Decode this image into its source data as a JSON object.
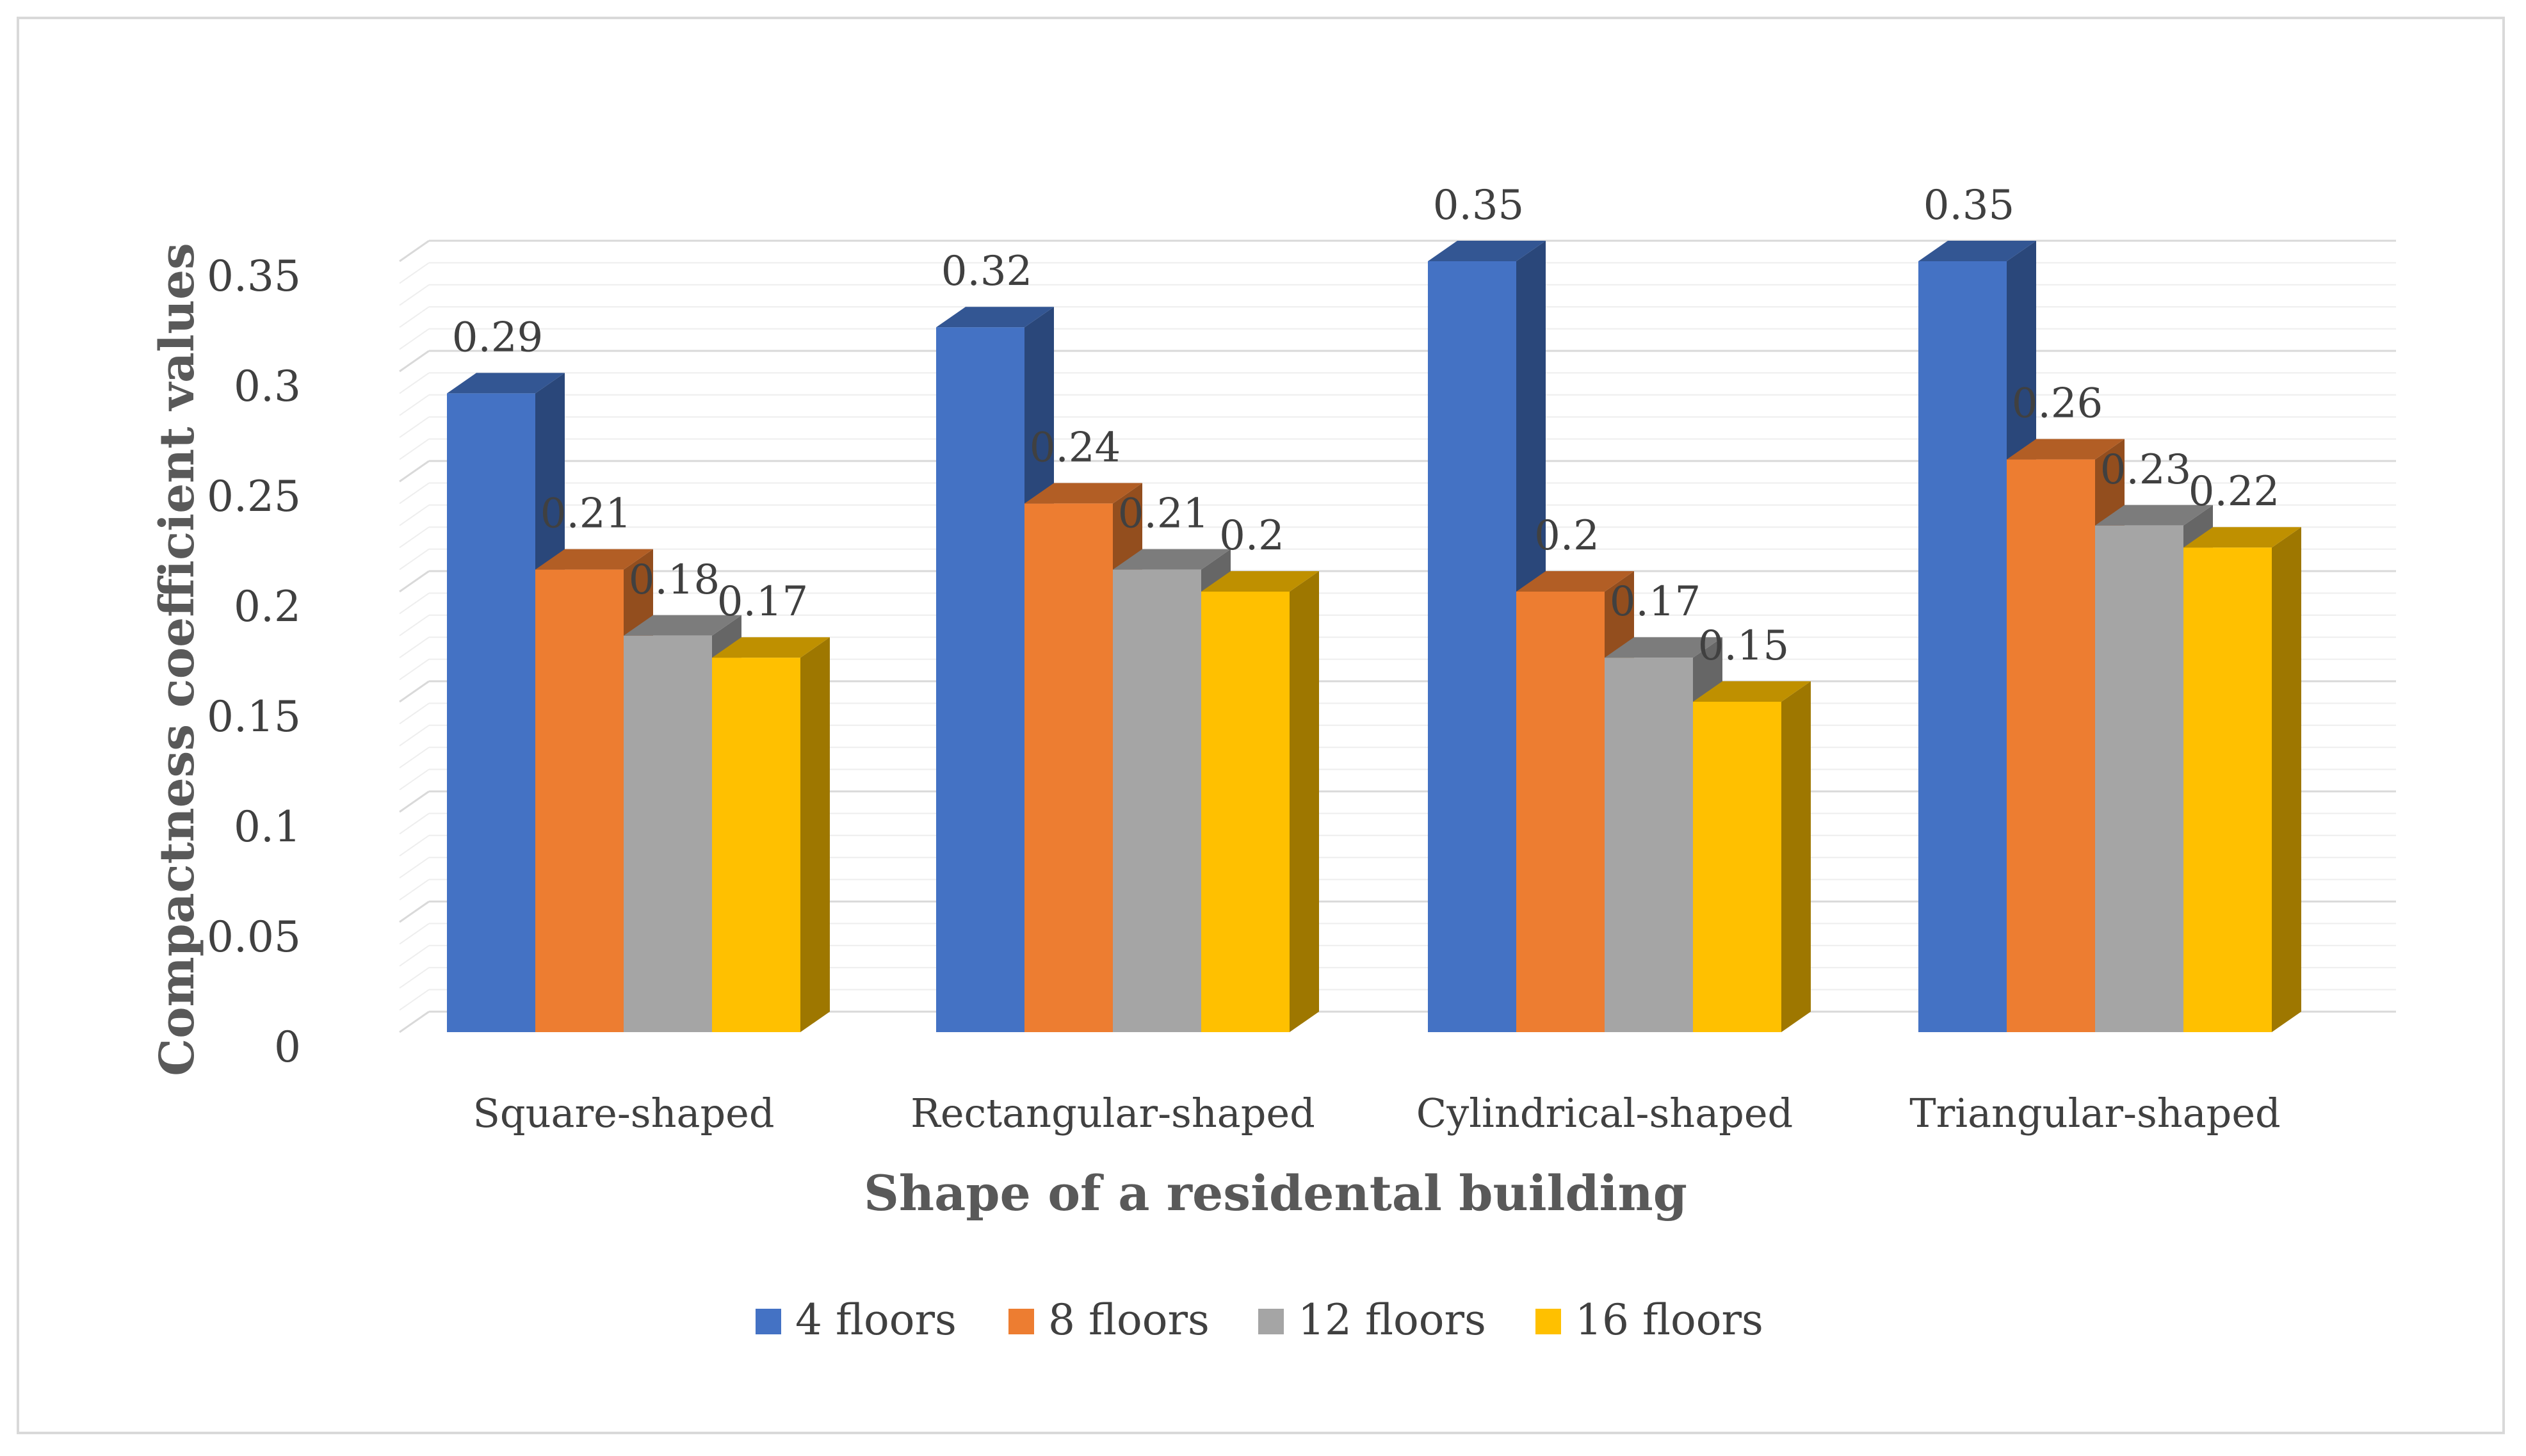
{
  "chart_data": {
    "type": "bar",
    "title": "",
    "categories": [
      "Square-shaped",
      "Rectangular-shaped",
      "Cylindrical-shaped",
      "Triangular-shaped"
    ],
    "series": [
      {
        "name": "4 floors",
        "color": "#4472c4",
        "values": [
          0.29,
          0.32,
          0.35,
          0.35
        ],
        "labels": [
          "0.29",
          "0.32",
          "0.35",
          "0.35"
        ]
      },
      {
        "name": "8 floors",
        "color": "#ed7d31",
        "values": [
          0.21,
          0.24,
          0.2,
          0.26
        ],
        "labels": [
          "0.21",
          "0.24",
          "0.2",
          "0.26"
        ]
      },
      {
        "name": "12 floors",
        "color": "#a5a5a5",
        "values": [
          0.18,
          0.21,
          0.17,
          0.23
        ],
        "labels": [
          "0.18",
          "0.21",
          "0.17",
          "0.23"
        ]
      },
      {
        "name": "16 floors",
        "color": "#ffc000",
        "values": [
          0.17,
          0.2,
          0.15,
          0.22
        ],
        "labels": [
          "0.17",
          "0.2",
          "0.15",
          "0.22"
        ]
      }
    ],
    "xlabel": "Shape of a residental building",
    "ylabel": "Compactness coefficient values",
    "ylim": [
      0,
      0.35
    ],
    "yticks": [
      0,
      0.05,
      0.1,
      0.15,
      0.2,
      0.25,
      0.3,
      0.35
    ],
    "ytick_labels": [
      "0",
      "0.05",
      "0.1",
      "0.15",
      "0.2",
      "0.25",
      "0.3",
      "0.35"
    ],
    "grid": true,
    "legend": "bottom",
    "style": "3d-clustered-column"
  }
}
